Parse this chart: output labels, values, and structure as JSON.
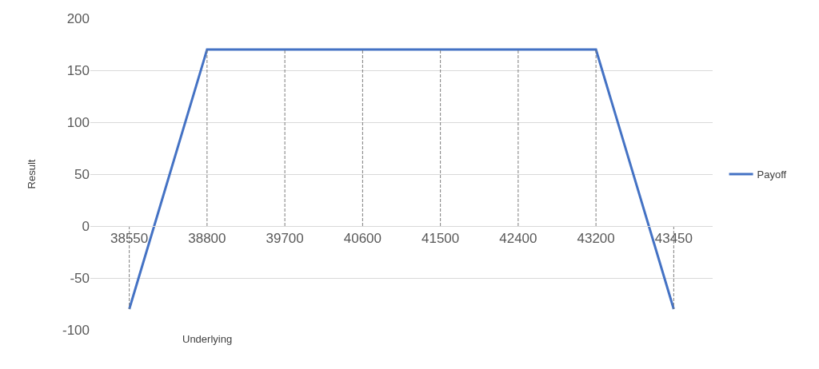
{
  "chart_data": {
    "type": "line",
    "xlabel": "Underlying",
    "ylabel": "Result",
    "categories": [
      "38550",
      "38800",
      "39700",
      "40600",
      "41500",
      "42400",
      "43200",
      "43450"
    ],
    "series": [
      {
        "name": "Payoff",
        "color": "#4472c4",
        "values": [
          -80,
          170,
          170,
          170,
          170,
          170,
          170,
          -80
        ]
      },
      {
        "color": "#7f7f7f",
        "line_style": "dashed",
        "x": [
          "38550",
          "38550"
        ],
        "values": [
          0,
          -80
        ]
      },
      {
        "color": "#7f7f7f",
        "line_style": "dashed",
        "x": [
          "38800",
          "38800"
        ],
        "values": [
          0,
          170
        ]
      },
      {
        "color": "#7f7f7f",
        "line_style": "dashed",
        "x": [
          "39700",
          "39700"
        ],
        "values": [
          0,
          170
        ]
      },
      {
        "color": "#7f7f7f",
        "line_style": "dashed",
        "x": [
          "40600",
          "40600"
        ],
        "values": [
          0,
          170
        ]
      },
      {
        "color": "#7f7f7f",
        "line_style": "dashed",
        "x": [
          "41500",
          "41500"
        ],
        "values": [
          0,
          170
        ]
      },
      {
        "color": "#7f7f7f",
        "line_style": "dashed",
        "x": [
          "42400",
          "42400"
        ],
        "values": [
          0,
          170
        ]
      },
      {
        "color": "#7f7f7f",
        "line_style": "dashed",
        "x": [
          "43200",
          "43200"
        ],
        "values": [
          0,
          170
        ]
      },
      {
        "color": "#7f7f7f",
        "line_style": "dashed",
        "x": [
          "43450",
          "43450"
        ],
        "values": [
          0,
          -80
        ]
      }
    ],
    "ylim": [
      -100,
      200
    ],
    "yticks": [
      -100,
      -50,
      0,
      50,
      100,
      150,
      200
    ],
    "grid": "y",
    "legend": "right",
    "marker": "none",
    "line_style": "solid"
  }
}
